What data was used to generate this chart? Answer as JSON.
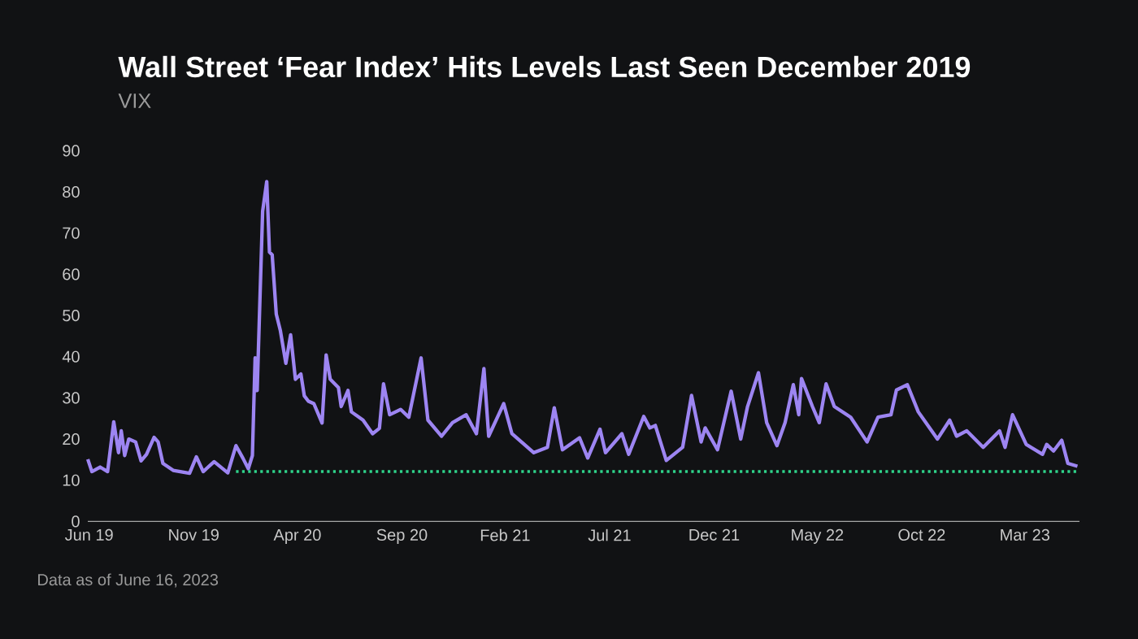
{
  "chart_data": {
    "type": "line",
    "title": "Wall Street ‘Fear Index’ Hits Levels Last Seen December 2019",
    "subtitle": "VIX",
    "annotations": [
      "Data as of June 16, 2023"
    ],
    "xlim": [
      "2019-06-28",
      "2023-06-19"
    ],
    "xticks": [
      {
        "value": "2019-06-30",
        "label": "Jun 19"
      },
      {
        "value": "2019-11-30",
        "label": "Nov 19"
      },
      {
        "value": "2020-04-30",
        "label": "Apr 20"
      },
      {
        "value": "2020-09-30",
        "label": "Sep 20"
      },
      {
        "value": "2021-02-28",
        "label": "Feb 21"
      },
      {
        "value": "2021-07-31",
        "label": "Jul 21"
      },
      {
        "value": "2021-12-31",
        "label": "Dec 21"
      },
      {
        "value": "2022-05-31",
        "label": "May 22"
      },
      {
        "value": "2022-10-31",
        "label": "Oct 22"
      },
      {
        "value": "2023-03-31",
        "label": "Mar 23"
      }
    ],
    "ylim": [
      0,
      90
    ],
    "yticks": [
      0,
      10,
      20,
      30,
      40,
      50,
      60,
      70,
      80,
      90
    ],
    "grid": false,
    "series": [
      {
        "color": "#9d85f2",
        "x": [
          "2019-06-28",
          "2019-07-04",
          "2019-07-16",
          "2019-07-27",
          "2019-08-05",
          "2019-08-12",
          "2019-08-16",
          "2019-08-21",
          "2019-08-27",
          "2019-09-06",
          "2019-09-14",
          "2019-09-22",
          "2019-10-03",
          "2019-10-09",
          "2019-10-16",
          "2019-10-31",
          "2019-11-24",
          "2019-12-04",
          "2019-12-14",
          "2019-12-30",
          "2020-01-19",
          "2020-01-31",
          "2020-02-10",
          "2020-02-18",
          "2020-02-24",
          "2020-02-28",
          "2020-03-02",
          "2020-03-06",
          "2020-03-10",
          "2020-03-16",
          "2020-03-20",
          "2020-03-24",
          "2020-03-30",
          "2020-04-05",
          "2020-04-13",
          "2020-04-20",
          "2020-04-27",
          "2020-05-05",
          "2020-05-10",
          "2020-05-16",
          "2020-05-24",
          "2020-06-05",
          "2020-06-11",
          "2020-06-17",
          "2020-06-29",
          "2020-07-03",
          "2020-07-13",
          "2020-07-18",
          "2020-08-04",
          "2020-08-18",
          "2020-08-28",
          "2020-09-03",
          "2020-09-12",
          "2020-09-28",
          "2020-10-10",
          "2020-10-28",
          "2020-11-07",
          "2020-11-27",
          "2020-12-13",
          "2021-01-02",
          "2021-01-17",
          "2021-01-28",
          "2021-02-04",
          "2021-02-26",
          "2021-03-10",
          "2021-04-11",
          "2021-05-01",
          "2021-05-11",
          "2021-05-23",
          "2021-06-17",
          "2021-06-29",
          "2021-07-17",
          "2021-07-25",
          "2021-08-18",
          "2021-08-28",
          "2021-09-19",
          "2021-09-28",
          "2021-10-06",
          "2021-10-22",
          "2021-11-15",
          "2021-11-28",
          "2021-12-12",
          "2021-12-18",
          "2022-01-05",
          "2022-01-25",
          "2022-02-08",
          "2022-02-18",
          "2022-03-06",
          "2022-03-18",
          "2022-04-02",
          "2022-04-14",
          "2022-04-26",
          "2022-05-04",
          "2022-05-08",
          "2022-05-24",
          "2022-06-03",
          "2022-06-13",
          "2022-06-25",
          "2022-07-19",
          "2022-08-12",
          "2022-08-28",
          "2022-09-16",
          "2022-09-24",
          "2022-10-10",
          "2022-10-26",
          "2022-11-23",
          "2022-12-11",
          "2022-12-21",
          "2023-01-05",
          "2023-01-29",
          "2023-02-22",
          "2023-03-02",
          "2023-03-13",
          "2023-04-02",
          "2023-04-26",
          "2023-05-02",
          "2023-05-12",
          "2023-05-24",
          "2023-06-02",
          "2023-06-16"
        ],
        "values": [
          15.1,
          12.1,
          13.2,
          12.1,
          24.2,
          16.7,
          22,
          16,
          20,
          19.3,
          14.7,
          16.3,
          20.4,
          19.3,
          14.1,
          12.4,
          11.7,
          15.7,
          12.1,
          14.5,
          11.8,
          18.4,
          15.4,
          12.8,
          16,
          39.7,
          31.8,
          53.6,
          75.3,
          82.5,
          65.4,
          64.7,
          50.3,
          46.3,
          38.4,
          45.3,
          34.5,
          35.8,
          30.5,
          29.2,
          28.6,
          23.9,
          40.4,
          34.5,
          32.5,
          27.9,
          31.8,
          26.6,
          24.6,
          21.3,
          22.6,
          33.4,
          25.9,
          27.2,
          25.3,
          39.7,
          24.6,
          20.7,
          24,
          25.9,
          21.3,
          37.1,
          20.7,
          28.6,
          21.3,
          16.7,
          18,
          27.6,
          17.4,
          20.3,
          15.4,
          22.4,
          16.7,
          21.3,
          16.3,
          25.5,
          22.7,
          23.3,
          14.8,
          18,
          30.6,
          19.3,
          22.7,
          17.4,
          31.6,
          20,
          27.9,
          36.1,
          24,
          18.4,
          24,
          33.2,
          25.9,
          34.7,
          27.9,
          24,
          33.4,
          27.9,
          25.3,
          19.3,
          25.3,
          25.9,
          31.9,
          33.2,
          26.6,
          20,
          24.6,
          20.7,
          22,
          18,
          22,
          18,
          25.9,
          18.7,
          16.3,
          18.7,
          17.1,
          19.7,
          14.1,
          13.4
        ]
      },
      {
        "color": "#2fd38a",
        "line_style": "dotted",
        "x": [
          "2020-01-31",
          "2023-06-16"
        ],
        "values": [
          12.1,
          12.1
        ]
      }
    ]
  }
}
